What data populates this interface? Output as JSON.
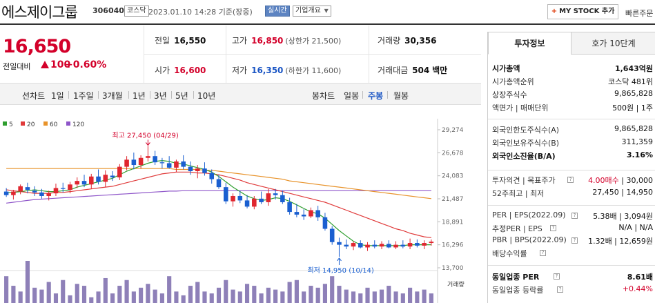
{
  "header": {
    "title": "에스제이그룹",
    "code": "306040",
    "market_badge": "코스닥",
    "datetime": "2023.01.10 14:28",
    "basis": "기준(장중)",
    "live_badge": "실시간",
    "company_info_btn": "기업개요",
    "mystock_btn": "MY STOCK 추가",
    "fast_order": "빠른주문"
  },
  "quote": {
    "price": "16,650",
    "change_label": "전일대비",
    "change": "100",
    "change_pct": "+0.60%"
  },
  "stats": {
    "prev_close_label": "전일",
    "prev_close": "16,550",
    "high_label": "고가",
    "high": "16,850",
    "upper_limit": "(상한가 21,500)",
    "volume_label": "거래량",
    "volume": "30,356",
    "open_label": "시가",
    "open": "16,600",
    "low_label": "저가",
    "low": "16,350",
    "lower_limit": "(하한가 11,600)",
    "amount_label": "거래대금",
    "amount": "504",
    "amount_unit": "백만"
  },
  "period_bar": {
    "line_chart": "선차트",
    "ranges": [
      "1일",
      "1주일",
      "3개월",
      "1년",
      "3년",
      "5년",
      "10년"
    ],
    "candle_chart": "봉차트",
    "candle_ranges": [
      "일봉",
      "주봉",
      "월봉"
    ],
    "selected_candle": "주봉"
  },
  "chart_data": {
    "type": "candlestick",
    "ma_legend": [
      {
        "name": "5",
        "color": "#2e9e2e"
      },
      {
        "name": "20",
        "color": "#e03a3a"
      },
      {
        "name": "60",
        "color": "#e8932b"
      },
      {
        "name": "120",
        "color": "#8e55c9"
      }
    ],
    "y_ticks": [
      13700,
      16296,
      18891,
      21487,
      24083,
      26678,
      29274
    ],
    "y_tick_labels": [
      "13,700",
      "16,296",
      "18,891",
      "21,487",
      "24,083",
      "26,678",
      "29,274"
    ],
    "ylim": [
      13700,
      29274
    ],
    "high_note": "최고 27,450 (04/29)",
    "low_note": "최저 14,950 (10/14)",
    "volume_label": "거래량",
    "candles": [
      [
        22300,
        22700,
        21700,
        21900
      ],
      [
        21900,
        22500,
        21400,
        22300
      ],
      [
        22300,
        23100,
        22000,
        22900
      ],
      [
        22800,
        23300,
        22100,
        22500
      ],
      [
        22400,
        22900,
        21800,
        22200
      ],
      [
        22200,
        22600,
        21500,
        21800
      ],
      [
        21800,
        22400,
        21300,
        22100
      ],
      [
        22100,
        23200,
        21800,
        22700
      ],
      [
        22700,
        23300,
        22200,
        22600
      ],
      [
        22500,
        23400,
        22100,
        23100
      ],
      [
        23100,
        23900,
        22700,
        23500
      ],
      [
        23500,
        24200,
        22800,
        23100
      ],
      [
        23100,
        24300,
        22600,
        24000
      ],
      [
        24000,
        24800,
        23100,
        23400
      ],
      [
        23400,
        24700,
        22800,
        24200
      ],
      [
        24100,
        24600,
        23500,
        23900
      ],
      [
        23900,
        25400,
        23600,
        25100
      ],
      [
        25100,
        26300,
        24700,
        25900
      ],
      [
        25900,
        26700,
        24800,
        25300
      ],
      [
        25300,
        26400,
        24900,
        26100
      ],
      [
        26100,
        27450,
        25700,
        26300
      ],
      [
        26300,
        26900,
        25300,
        25600
      ],
      [
        25600,
        26100,
        24900,
        25500
      ],
      [
        25500,
        26300,
        24900,
        25000
      ],
      [
        25000,
        25900,
        24500,
        25700
      ],
      [
        25700,
        26400,
        24800,
        25100
      ],
      [
        25100,
        25700,
        24200,
        24600
      ],
      [
        24600,
        25300,
        23800,
        24900
      ],
      [
        24900,
        25600,
        24100,
        24400
      ],
      [
        24400,
        24800,
        23200,
        23700
      ],
      [
        23700,
        24200,
        22600,
        22800
      ],
      [
        22800,
        23300,
        20900,
        21200
      ],
      [
        21200,
        22100,
        20600,
        21800
      ],
      [
        21800,
        22400,
        21000,
        21300
      ],
      [
        21300,
        21900,
        20400,
        20600
      ],
      [
        20600,
        21800,
        20300,
        21500
      ],
      [
        21500,
        22300,
        20900,
        21100
      ],
      [
        21100,
        22600,
        20700,
        22100
      ],
      [
        22100,
        22600,
        21400,
        21900
      ],
      [
        21900,
        22400,
        20900,
        21100
      ],
      [
        21100,
        21600,
        19700,
        20000
      ],
      [
        20000,
        20900,
        19400,
        19700
      ],
      [
        19700,
        20300,
        19100,
        19500
      ],
      [
        19500,
        20500,
        19300,
        20200
      ],
      [
        20200,
        20700,
        19000,
        19400
      ],
      [
        19400,
        19900,
        17900,
        18100
      ],
      [
        18100,
        18400,
        16300,
        16600
      ],
      [
        16600,
        17100,
        14950,
        16300
      ],
      [
        16300,
        16900,
        15800,
        16100
      ],
      [
        16100,
        16700,
        15700,
        16500
      ],
      [
        16500,
        16800,
        15900,
        16000
      ],
      [
        16000,
        16600,
        15600,
        16300
      ],
      [
        16300,
        16800,
        15900,
        16100
      ],
      [
        16100,
        16700,
        15800,
        16400
      ],
      [
        16400,
        16800,
        15900,
        16000
      ],
      [
        16000,
        16700,
        15800,
        16300
      ],
      [
        16300,
        16800,
        15900,
        16100
      ],
      [
        16100,
        17000,
        15800,
        16500
      ],
      [
        16500,
        16900,
        16000,
        16200
      ],
      [
        16200,
        16800,
        15800,
        16500
      ],
      [
        16500,
        16900,
        16200,
        16650
      ]
    ],
    "volumes": [
      14,
      9,
      6,
      22,
      8,
      7,
      11,
      5,
      12,
      4,
      10,
      9,
      3,
      6,
      13,
      5,
      9,
      12,
      6,
      8,
      10,
      7,
      5,
      14,
      6,
      4,
      9,
      11,
      6,
      5,
      8,
      12,
      7,
      6,
      10,
      9,
      5,
      8,
      7,
      6,
      11,
      12,
      6,
      9,
      8,
      10,
      14,
      9,
      7,
      6,
      5,
      8,
      6,
      7,
      9,
      6,
      5,
      8,
      6,
      7,
      5
    ],
    "ma5": [
      22200,
      22200,
      22300,
      22400,
      22500,
      22400,
      22300,
      22300,
      22400,
      22500,
      22800,
      23000,
      23200,
      23400,
      23600,
      23800,
      24200,
      24600,
      24900,
      25200,
      25500,
      25700,
      25800,
      25700,
      25500,
      25400,
      25200,
      25000,
      24800,
      24500,
      24000,
      23400,
      22800,
      22300,
      21800,
      21500,
      21300,
      21400,
      21600,
      21500,
      21200,
      20800,
      20400,
      20000,
      19800,
      19300,
      18600,
      17900,
      17300,
      16700,
      16300,
      16200,
      16200,
      16200,
      16200,
      16200,
      16200,
      16300,
      16300,
      16300,
      16300
    ],
    "ma20": [
      22500,
      22400,
      22300,
      22200,
      22100,
      22100,
      22100,
      22200,
      22200,
      22300,
      22400,
      22500,
      22600,
      22700,
      22800,
      22900,
      23100,
      23300,
      23500,
      23700,
      23900,
      24100,
      24300,
      24400,
      24500,
      24500,
      24500,
      24400,
      24400,
      24300,
      24200,
      24000,
      23800,
      23600,
      23300,
      23100,
      22900,
      22700,
      22500,
      22300,
      22100,
      21900,
      21700,
      21500,
      21300,
      21100,
      20800,
      20500,
      20200,
      19900,
      19600,
      19300,
      19000,
      18700,
      18400,
      18100,
      17900,
      17600,
      17400,
      17200,
      17100
    ],
    "ma60": [
      24900,
      24900,
      24900,
      24900,
      24900,
      24900,
      24900,
      24900,
      24900,
      24900,
      24900,
      24900,
      24900,
      24900,
      24900,
      24900,
      24900,
      24900,
      24900,
      24900,
      24900,
      24900,
      24900,
      24900,
      24800,
      24800,
      24800,
      24800,
      24700,
      24700,
      24600,
      24500,
      24400,
      24300,
      24200,
      24100,
      24000,
      23900,
      23800,
      23700,
      23500,
      23400,
      23300,
      23200,
      23100,
      23000,
      22900,
      22800,
      22700,
      22600,
      22500,
      22400,
      22300,
      22200,
      22100,
      22000,
      21900,
      21800,
      21700,
      21600,
      21500
    ],
    "ma120": [
      21000,
      21100,
      21200,
      21300,
      21400,
      21450,
      21500,
      21550,
      21600,
      21650,
      21700,
      21750,
      21800,
      21850,
      21900,
      21950,
      22000,
      22050,
      22100,
      22150,
      22200,
      22250,
      22300,
      22350,
      22350,
      22400,
      22400,
      22400,
      22400,
      22400,
      22400,
      22400,
      22400,
      22400,
      22400,
      22400,
      22400,
      22400,
      22400,
      22400,
      22400,
      22400,
      22400,
      22400,
      22400,
      22400,
      22400,
      22400,
      22400,
      22400,
      22400,
      22400,
      22400,
      22400,
      22400,
      22400,
      22400,
      22400,
      22400,
      22400,
      22400
    ]
  },
  "right_panel": {
    "tab_invest": "투자정보",
    "tab_orderbook": "호가 10단계",
    "rows1": [
      {
        "k": "시가총액",
        "v": "1,643억원",
        "bold": true
      },
      {
        "k": "시가총액순위",
        "v": "코스닥 481위"
      },
      {
        "k": "상장주식수",
        "v": "9,865,828"
      },
      {
        "k": "액면가 | 매매단위",
        "v": "500원 | 1주"
      }
    ],
    "rows2": [
      {
        "k": "외국인한도주식수(A)",
        "v": "9,865,828"
      },
      {
        "k": "외국인보유주식수(B)",
        "v": "311,359"
      },
      {
        "k": "외국인소진율(B/A)",
        "v": "3.16%",
        "bold": true
      }
    ],
    "opinion_label": "투자의견 | 목표주가",
    "opinion_val": "4.00매수",
    "target_val": "| 30,000",
    "week52_label": "52주최고 | 최저",
    "week52_val": "27,450 | 14,950",
    "per_label": "PER | EPS(2022.09)",
    "per_val": "5.38배 | 3,094원",
    "est_per_label": "추정PER | EPS",
    "est_per_val": "N/A | N/A",
    "pbr_label": "PBR | BPS(2022.09)",
    "pbr_val": "1.32배 | 12,659원",
    "div_label": "배당수익률",
    "div_val": "",
    "ind_per_label": "동일업종 PER",
    "ind_per_val": "8.61배",
    "ind_rate_label": "동일업종 등락률",
    "ind_rate_val": "+0.44%"
  }
}
